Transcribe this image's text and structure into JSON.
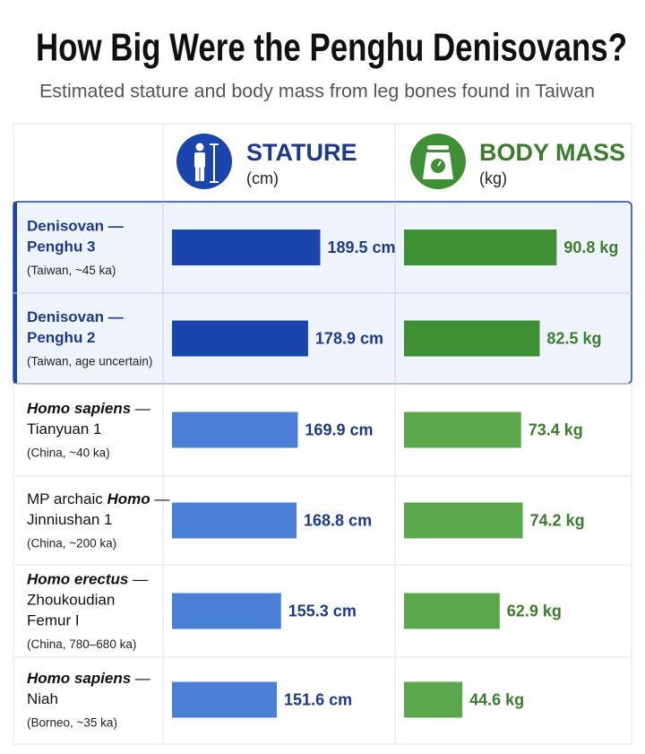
{
  "chart_data": {
    "type": "bar",
    "title": "How Big Were the Penghu Denisovans?",
    "subtitle": "Estimated stature and body mass from leg bones found in Taiwan",
    "rows": [
      {
        "label_lines": [
          [
            {
              "text": "Denisovan —"
            }
          ],
          [
            {
              "text": "Penghu 3"
            }
          ]
        ],
        "location": "(Taiwan, ~45 ka)",
        "highlight": true
      },
      {
        "label_lines": [
          [
            {
              "text": "Denisovan —"
            }
          ],
          [
            {
              "text": "Penghu 2"
            }
          ]
        ],
        "location": "(Taiwan, age uncertain)",
        "highlight": true
      },
      {
        "label_lines": [
          [
            {
              "text": "Homo sapiens",
              "italic": true
            },
            {
              "text": " —"
            }
          ],
          [
            {
              "text": "Tianyuan 1"
            }
          ]
        ],
        "location": "(China, ~40 ka)"
      },
      {
        "label_lines": [
          [
            {
              "text": "MP archaic "
            },
            {
              "text": "Homo",
              "italic": true
            },
            {
              "text": " —"
            }
          ],
          [
            {
              "text": "Jinniushan 1"
            }
          ]
        ],
        "location": "(China, ~200 ka)"
      },
      {
        "label_lines": [
          [
            {
              "text": "Homo erectus",
              "italic": true
            },
            {
              "text": " —"
            }
          ],
          [
            {
              "text": "Zhoukoudian"
            }
          ],
          [
            {
              "text": "Femur I"
            }
          ]
        ],
        "location": "(China, 780–680 ka)"
      },
      {
        "label_lines": [
          [
            {
              "text": "Homo sapiens",
              "italic": true
            },
            {
              "text": " —"
            }
          ],
          [
            {
              "text": "Niah"
            }
          ]
        ],
        "location": "(Borneo, ~35 ka)"
      }
    ],
    "series": [
      {
        "name": "STATURE",
        "unit": "(cm)",
        "color": "#4a7fd6",
        "highlight_color": "#1a45ad",
        "label_color": "#1c3a8c",
        "xlim": [
          60,
          240
        ],
        "values": [
          189.5,
          178.9,
          169.9,
          168.8,
          155.3,
          151.6
        ],
        "value_labels": [
          "189.5 cm",
          "178.9 cm",
          "169.9 cm",
          "168.8 cm",
          "155.3 cm",
          "151.6 cm"
        ]
      },
      {
        "name": "BODY MASS",
        "unit": "(kg)",
        "color": "#5ba84c",
        "highlight_color": "#3f8f34",
        "label_color": "#3a7d2c",
        "xlim": [
          16,
          117
        ],
        "values": [
          90.8,
          82.5,
          73.4,
          74.2,
          62.9,
          44.6
        ],
        "value_labels": [
          "90.8 kg",
          "82.5 kg",
          "73.4 kg",
          "74.2 kg",
          "62.9 kg",
          "44.6 kg"
        ]
      }
    ]
  }
}
